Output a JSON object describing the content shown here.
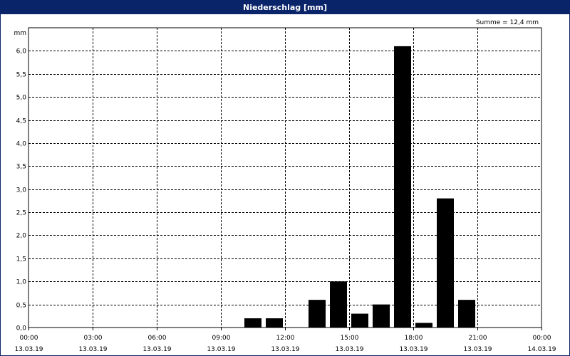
{
  "window": {
    "title": "Niederschlag [mm]"
  },
  "chart_data": {
    "type": "bar",
    "title": "Niederschlag [mm]",
    "unit_label": "mm",
    "summary": "Summe = 12,4 mm",
    "ylim": [
      0,
      6.5
    ],
    "yticks": [
      0.0,
      0.5,
      1.0,
      1.5,
      2.0,
      2.5,
      3.0,
      3.5,
      4.0,
      4.5,
      5.0,
      5.5,
      6.0
    ],
    "ytick_labels": [
      "0,0",
      "0,5",
      "1,0",
      "1,5",
      "2,0",
      "2,5",
      "3,0",
      "3,5",
      "4,0",
      "4,5",
      "5,0",
      "5,5",
      "6,0"
    ],
    "x_range_hours": [
      0,
      24
    ],
    "xticks": [
      {
        "hour": 0,
        "time": "00:00",
        "date": "13.03.19"
      },
      {
        "hour": 3,
        "time": "03:00",
        "date": "13.03.19"
      },
      {
        "hour": 6,
        "time": "06:00",
        "date": "13.03.19"
      },
      {
        "hour": 9,
        "time": "09:00",
        "date": "13.03.19"
      },
      {
        "hour": 12,
        "time": "12:00",
        "date": "13.03.19"
      },
      {
        "hour": 15,
        "time": "15:00",
        "date": "13.03.19"
      },
      {
        "hour": 18,
        "time": "18:00",
        "date": "13.03.19"
      },
      {
        "hour": 21,
        "time": "21:00",
        "date": "13.03.19"
      },
      {
        "hour": 24,
        "time": "00:00",
        "date": "14.03.19"
      }
    ],
    "bars": [
      {
        "hour": 10,
        "value": 0.2
      },
      {
        "hour": 11,
        "value": 0.2
      },
      {
        "hour": 13,
        "value": 0.6
      },
      {
        "hour": 14,
        "value": 1.0
      },
      {
        "hour": 15,
        "value": 0.3
      },
      {
        "hour": 16,
        "value": 0.5
      },
      {
        "hour": 17,
        "value": 6.1
      },
      {
        "hour": 18,
        "value": 0.1
      },
      {
        "hour": 19,
        "value": 2.8
      },
      {
        "hour": 20,
        "value": 0.6
      }
    ],
    "grid": true,
    "colors": {
      "bar": "#000000",
      "titlebar": "#0a246a",
      "grid": "#000000",
      "background": "#ffffff"
    }
  }
}
